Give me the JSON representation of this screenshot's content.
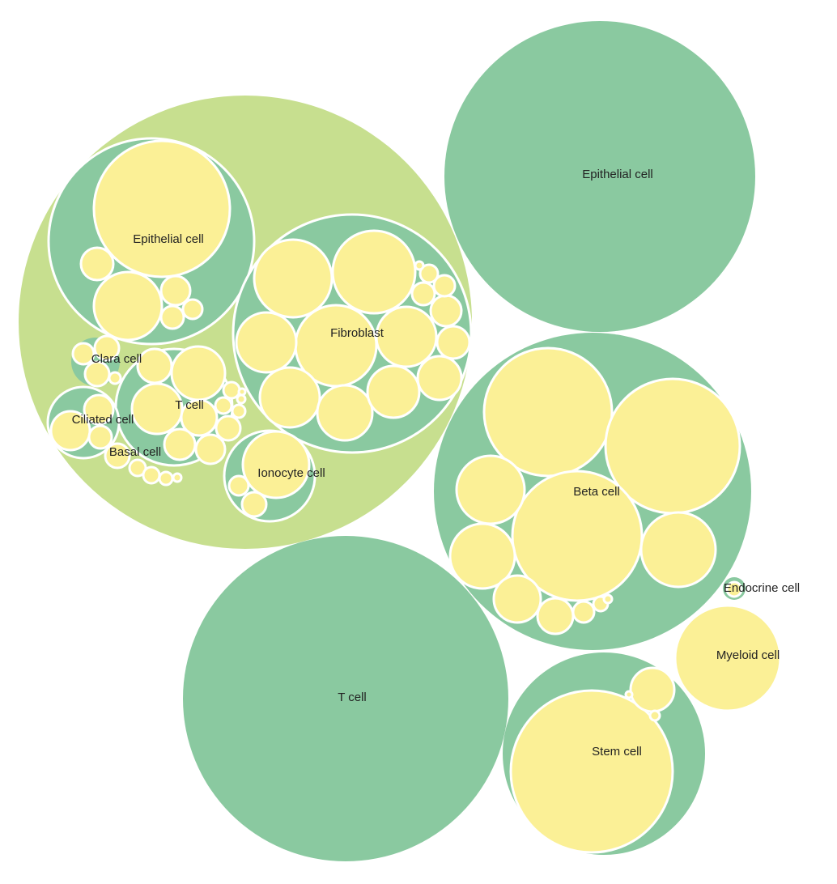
{
  "nodes": [
    {
      "label": "Epithelial cell"
    },
    {
      "label": "Fibroblast"
    },
    {
      "label": "Clara cell"
    },
    {
      "label": "T cell"
    },
    {
      "label": "Ciliated cell"
    },
    {
      "label": "Basal cell"
    },
    {
      "label": "Ionocyte cell"
    },
    {
      "label": "Epithelial cell"
    },
    {
      "label": "Beta cell"
    },
    {
      "label": "Endocrine cell"
    },
    {
      "label": "Myeloid cell"
    },
    {
      "label": "T cell"
    },
    {
      "label": "Stem cell"
    }
  ]
}
